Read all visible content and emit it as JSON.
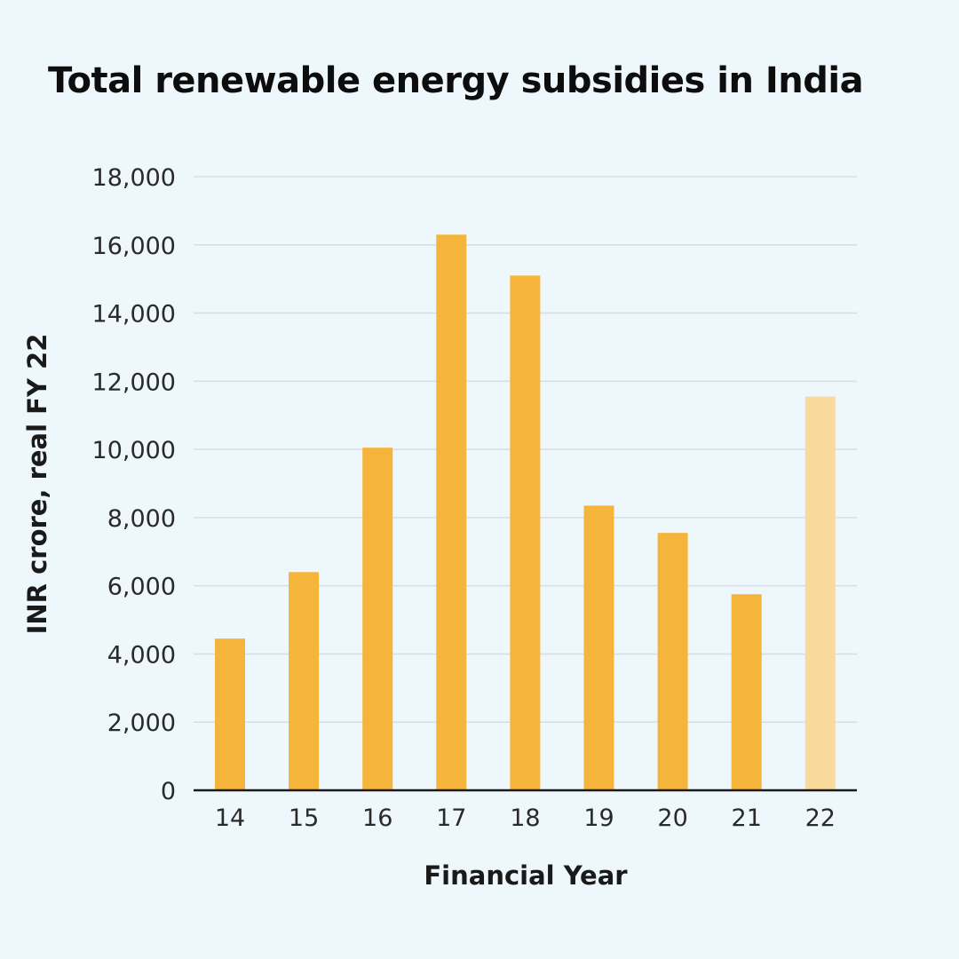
{
  "chart_data": {
    "type": "bar",
    "title": "Total renewable energy subsidies in India",
    "xlabel": "Financial Year",
    "ylabel": "INR crore, real FY 22",
    "categories": [
      "14",
      "15",
      "16",
      "17",
      "18",
      "19",
      "20",
      "21",
      "22"
    ],
    "values": [
      4450,
      6400,
      10050,
      16300,
      15100,
      8350,
      7550,
      5750,
      11550
    ],
    "ylim": [
      0,
      18000
    ],
    "yticks": [
      0,
      2000,
      4000,
      6000,
      8000,
      10000,
      12000,
      14000,
      16000,
      18000
    ],
    "ytick_labels": [
      "0",
      "2,000",
      "4,000",
      "6,000",
      "8,000",
      "10,000",
      "12,000",
      "14,000",
      "16,000",
      "18,000"
    ],
    "grid": true,
    "colors": {
      "bar": "#f5b43a",
      "bar_highlight": "#f9d99c",
      "grid": "#d8dde0",
      "axis": "#1a1a1a",
      "background": "#eef7fc"
    },
    "highlight_category": "22"
  }
}
